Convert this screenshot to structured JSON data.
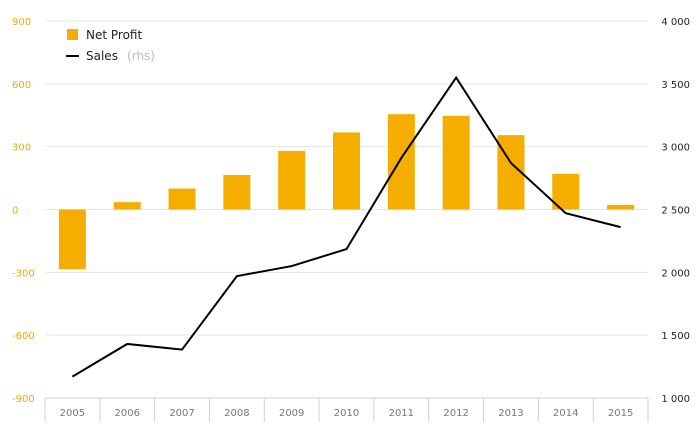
{
  "chart_data": {
    "type": "bar",
    "categories": [
      "2005",
      "2006",
      "2007",
      "2008",
      "2009",
      "2010",
      "2011",
      "2012",
      "2013",
      "2014",
      "2015"
    ],
    "series": [
      {
        "name": "Net Profit",
        "kind": "bar",
        "axis": "left",
        "color": "#f5ad00",
        "values": [
          -285,
          35,
          100,
          165,
          280,
          368,
          455,
          447,
          355,
          170,
          22
        ]
      },
      {
        "name": "Sales",
        "note": "(rhs)",
        "kind": "line",
        "axis": "right",
        "color": "#000000",
        "values": [
          1170,
          1430,
          1385,
          1970,
          2050,
          2185,
          2910,
          3550,
          2870,
          2470,
          2360
        ]
      }
    ],
    "y_left": {
      "lim": [
        -900,
        900
      ],
      "ticks": [
        -900,
        -600,
        -300,
        0,
        300,
        600,
        900
      ],
      "tick_labels": [
        "-900",
        "-600",
        "-300",
        "0",
        "300",
        "600",
        "900"
      ],
      "color": "#f0ab00"
    },
    "y_right": {
      "lim": [
        1000,
        4000
      ],
      "ticks": [
        1000,
        1500,
        2000,
        2500,
        3000,
        3500,
        4000
      ],
      "tick_labels": [
        "1 000",
        "1 500",
        "2 000",
        "2 500",
        "3 000",
        "3 500",
        "4 000"
      ],
      "color": "#222222"
    },
    "grid": true,
    "legend_position": "top-left",
    "title": "",
    "xlabel": "",
    "ylabel": ""
  }
}
